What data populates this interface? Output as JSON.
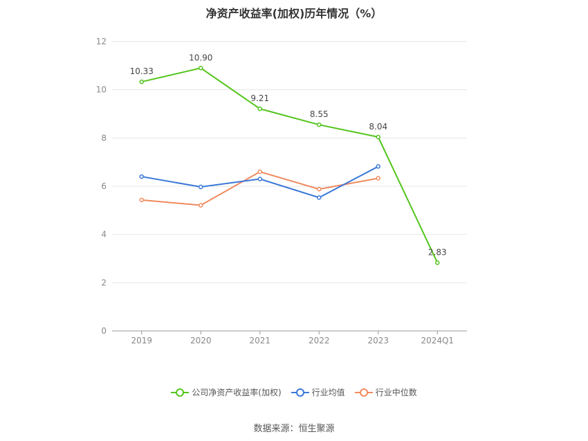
{
  "chart_data": {
    "type": "line",
    "title": "净资产收益率(加权)历年情况（%）",
    "categories": [
      "2019",
      "2020",
      "2021",
      "2022",
      "2023",
      "2024Q1"
    ],
    "ylim": [
      0,
      12
    ],
    "yticks": [
      "0",
      "2",
      "4",
      "6",
      "8",
      "10",
      "12"
    ],
    "grid": true,
    "legend_position": "bottom",
    "series": [
      {
        "name": "公司净资产收益率(加权)",
        "color": "#52c41a",
        "values": [
          10.33,
          10.9,
          9.21,
          8.55,
          8.04,
          2.83
        ],
        "labels": [
          "10.33",
          "10.90",
          "9.21",
          "8.55",
          "8.04",
          "2.83"
        ]
      },
      {
        "name": "行业均值",
        "color": "#3a78d8",
        "values": [
          6.4,
          5.97,
          6.3,
          5.53,
          6.82,
          null
        ]
      },
      {
        "name": "行业中位数",
        "color": "#f08a5d",
        "values": [
          5.43,
          5.21,
          6.6,
          5.88,
          6.33,
          null
        ]
      }
    ]
  },
  "source": "数据来源：恒生聚源"
}
